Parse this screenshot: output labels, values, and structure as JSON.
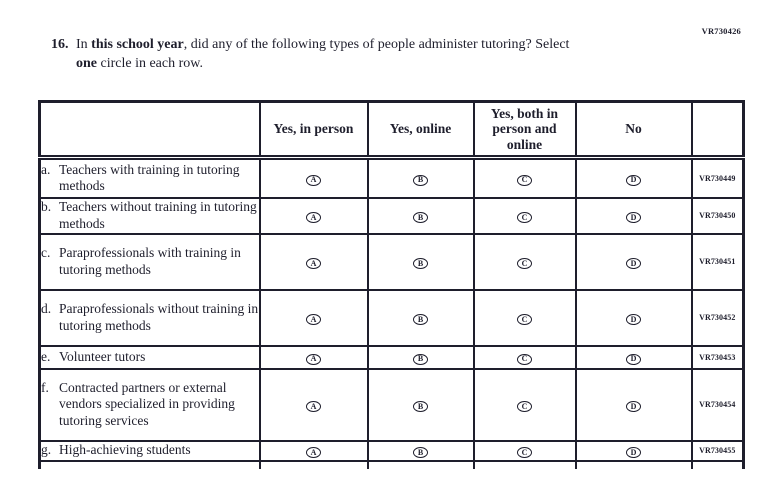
{
  "question": {
    "number": "16.",
    "code": "VR730426",
    "line1": {
      "pre": "In ",
      "bold": "this school year",
      "post": ", did any of the following types of people administer tutoring? Select"
    },
    "line2": {
      "bold": "one",
      "post": " circle in each row."
    }
  },
  "table": {
    "headers": [
      "Yes, in person",
      "Yes, online",
      "Yes, both in person and online",
      "No"
    ],
    "option_letters": [
      "A",
      "B",
      "C",
      "D"
    ],
    "rows": [
      {
        "letter": "a.",
        "label": "Teachers with training in tutoring methods",
        "code": "VR730449"
      },
      {
        "letter": "b.",
        "label": "Teachers without training in tutoring methods",
        "code": "VR730450"
      },
      {
        "letter": "c.",
        "label": "Paraprofessionals with training in tutoring methods",
        "code": "VR730451"
      },
      {
        "letter": "d.",
        "label": "Paraprofessionals without training in tutoring methods",
        "code": "VR730452"
      },
      {
        "letter": "e.",
        "label": "Volunteer tutors",
        "code": "VR730453"
      },
      {
        "letter": "f.",
        "label": "Contracted partners or external vendors specialized in providing tutoring services",
        "code": "VR730454"
      },
      {
        "letter": "g.",
        "label": "High-achieving students",
        "code": "VR730455"
      }
    ]
  },
  "colors": {
    "ink": "#1e1e2c",
    "background": "#ffffff"
  }
}
